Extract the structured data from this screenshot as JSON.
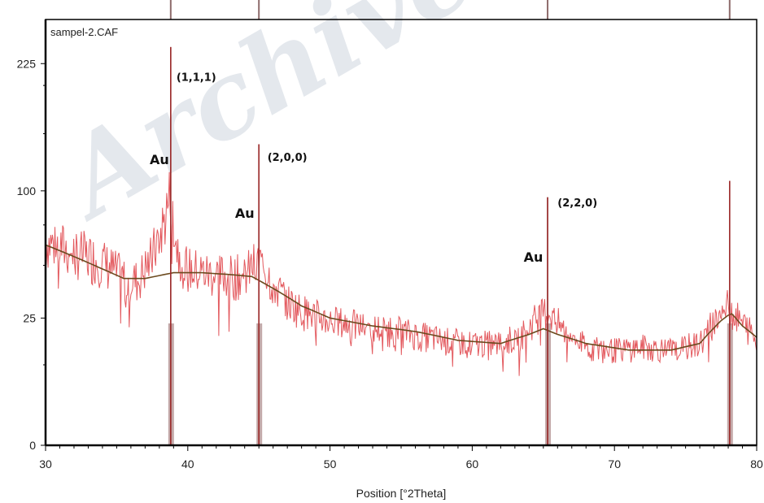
{
  "chart_data": {
    "type": "line",
    "title": "sampel-2.CAF",
    "xlabel": "Position [°2Theta]",
    "ylabel": "",
    "xlim": [
      30,
      80
    ],
    "x_ticks": [
      "30",
      "40",
      "50",
      "60",
      "70",
      "80"
    ],
    "y_ticks": [
      "0",
      "25",
      "100",
      "225"
    ],
    "y_scale": "sqrt",
    "ylim": [
      0,
      280
    ],
    "colors": {
      "pattern": "#e0474c",
      "background": "#6b4a1e",
      "reference": "#8e6b6b",
      "frame": "#000000"
    },
    "pattern_anchors": [
      [
        30,
        64
      ],
      [
        32,
        58
      ],
      [
        34,
        52
      ],
      [
        35.5,
        43
      ],
      [
        36.5,
        42
      ],
      [
        37.5,
        55
      ],
      [
        38.3,
        76
      ],
      [
        38.6,
        90
      ],
      [
        38.8,
        100
      ],
      [
        39.2,
        62
      ],
      [
        40,
        48
      ],
      [
        42,
        45
      ],
      [
        44,
        44
      ],
      [
        44.6,
        50
      ],
      [
        45.2,
        52
      ],
      [
        46,
        40
      ],
      [
        47,
        32
      ],
      [
        48,
        28
      ],
      [
        50,
        24
      ],
      [
        52,
        22
      ],
      [
        55,
        20
      ],
      [
        58,
        17
      ],
      [
        60,
        16
      ],
      [
        62,
        16
      ],
      [
        63.5,
        19
      ],
      [
        64.5,
        25
      ],
      [
        65.3,
        28
      ],
      [
        66.5,
        20
      ],
      [
        68,
        15
      ],
      [
        70,
        14
      ],
      [
        72,
        15
      ],
      [
        74,
        14
      ],
      [
        76,
        16
      ],
      [
        77.3,
        26
      ],
      [
        78,
        30
      ],
      [
        78.8,
        24
      ],
      [
        80,
        18
      ]
    ],
    "background_anchors": [
      [
        30,
        62
      ],
      [
        32,
        55
      ],
      [
        34,
        48
      ],
      [
        35.5,
        43
      ],
      [
        37,
        43
      ],
      [
        39,
        46
      ],
      [
        41,
        46
      ],
      [
        43,
        45
      ],
      [
        44.5,
        44
      ],
      [
        46,
        38
      ],
      [
        48,
        30
      ],
      [
        50,
        25
      ],
      [
        53,
        22
      ],
      [
        56,
        20
      ],
      [
        59,
        17
      ],
      [
        62,
        16
      ],
      [
        64,
        19
      ],
      [
        65,
        21
      ],
      [
        66,
        19
      ],
      [
        68,
        16
      ],
      [
        71,
        14
      ],
      [
        74,
        14
      ],
      [
        76,
        16
      ],
      [
        77.5,
        24
      ],
      [
        78.2,
        27
      ],
      [
        79,
        22
      ],
      [
        80,
        18
      ]
    ],
    "sharp_peaks": [
      {
        "x": 38.8,
        "y": 245
      },
      {
        "x": 45.0,
        "y": 140
      },
      {
        "x": 65.3,
        "y": 95
      },
      {
        "x": 78.1,
        "y": 108
      }
    ],
    "reference_lines": [
      {
        "x": 38.8,
        "y": 245
      },
      {
        "x": 45.0,
        "y": 140
      },
      {
        "x": 65.3,
        "y": 95
      },
      {
        "x": 78.1,
        "y": 108
      }
    ],
    "peak_labels": [
      {
        "text": "(1,1,1)",
        "x": 39.2,
        "y": 205
      },
      {
        "text": "(2,0,0)",
        "x": 45.6,
        "y": 125
      },
      {
        "text": "(2,2,0)",
        "x": 66.0,
        "y": 88
      }
    ],
    "element_labels": [
      {
        "text": "Au",
        "x": 38.0,
        "y": 122
      },
      {
        "text": "Au",
        "x": 44.0,
        "y": 80
      },
      {
        "text": "Au",
        "x": 64.3,
        "y": 52
      }
    ],
    "watermark": "Archive"
  }
}
